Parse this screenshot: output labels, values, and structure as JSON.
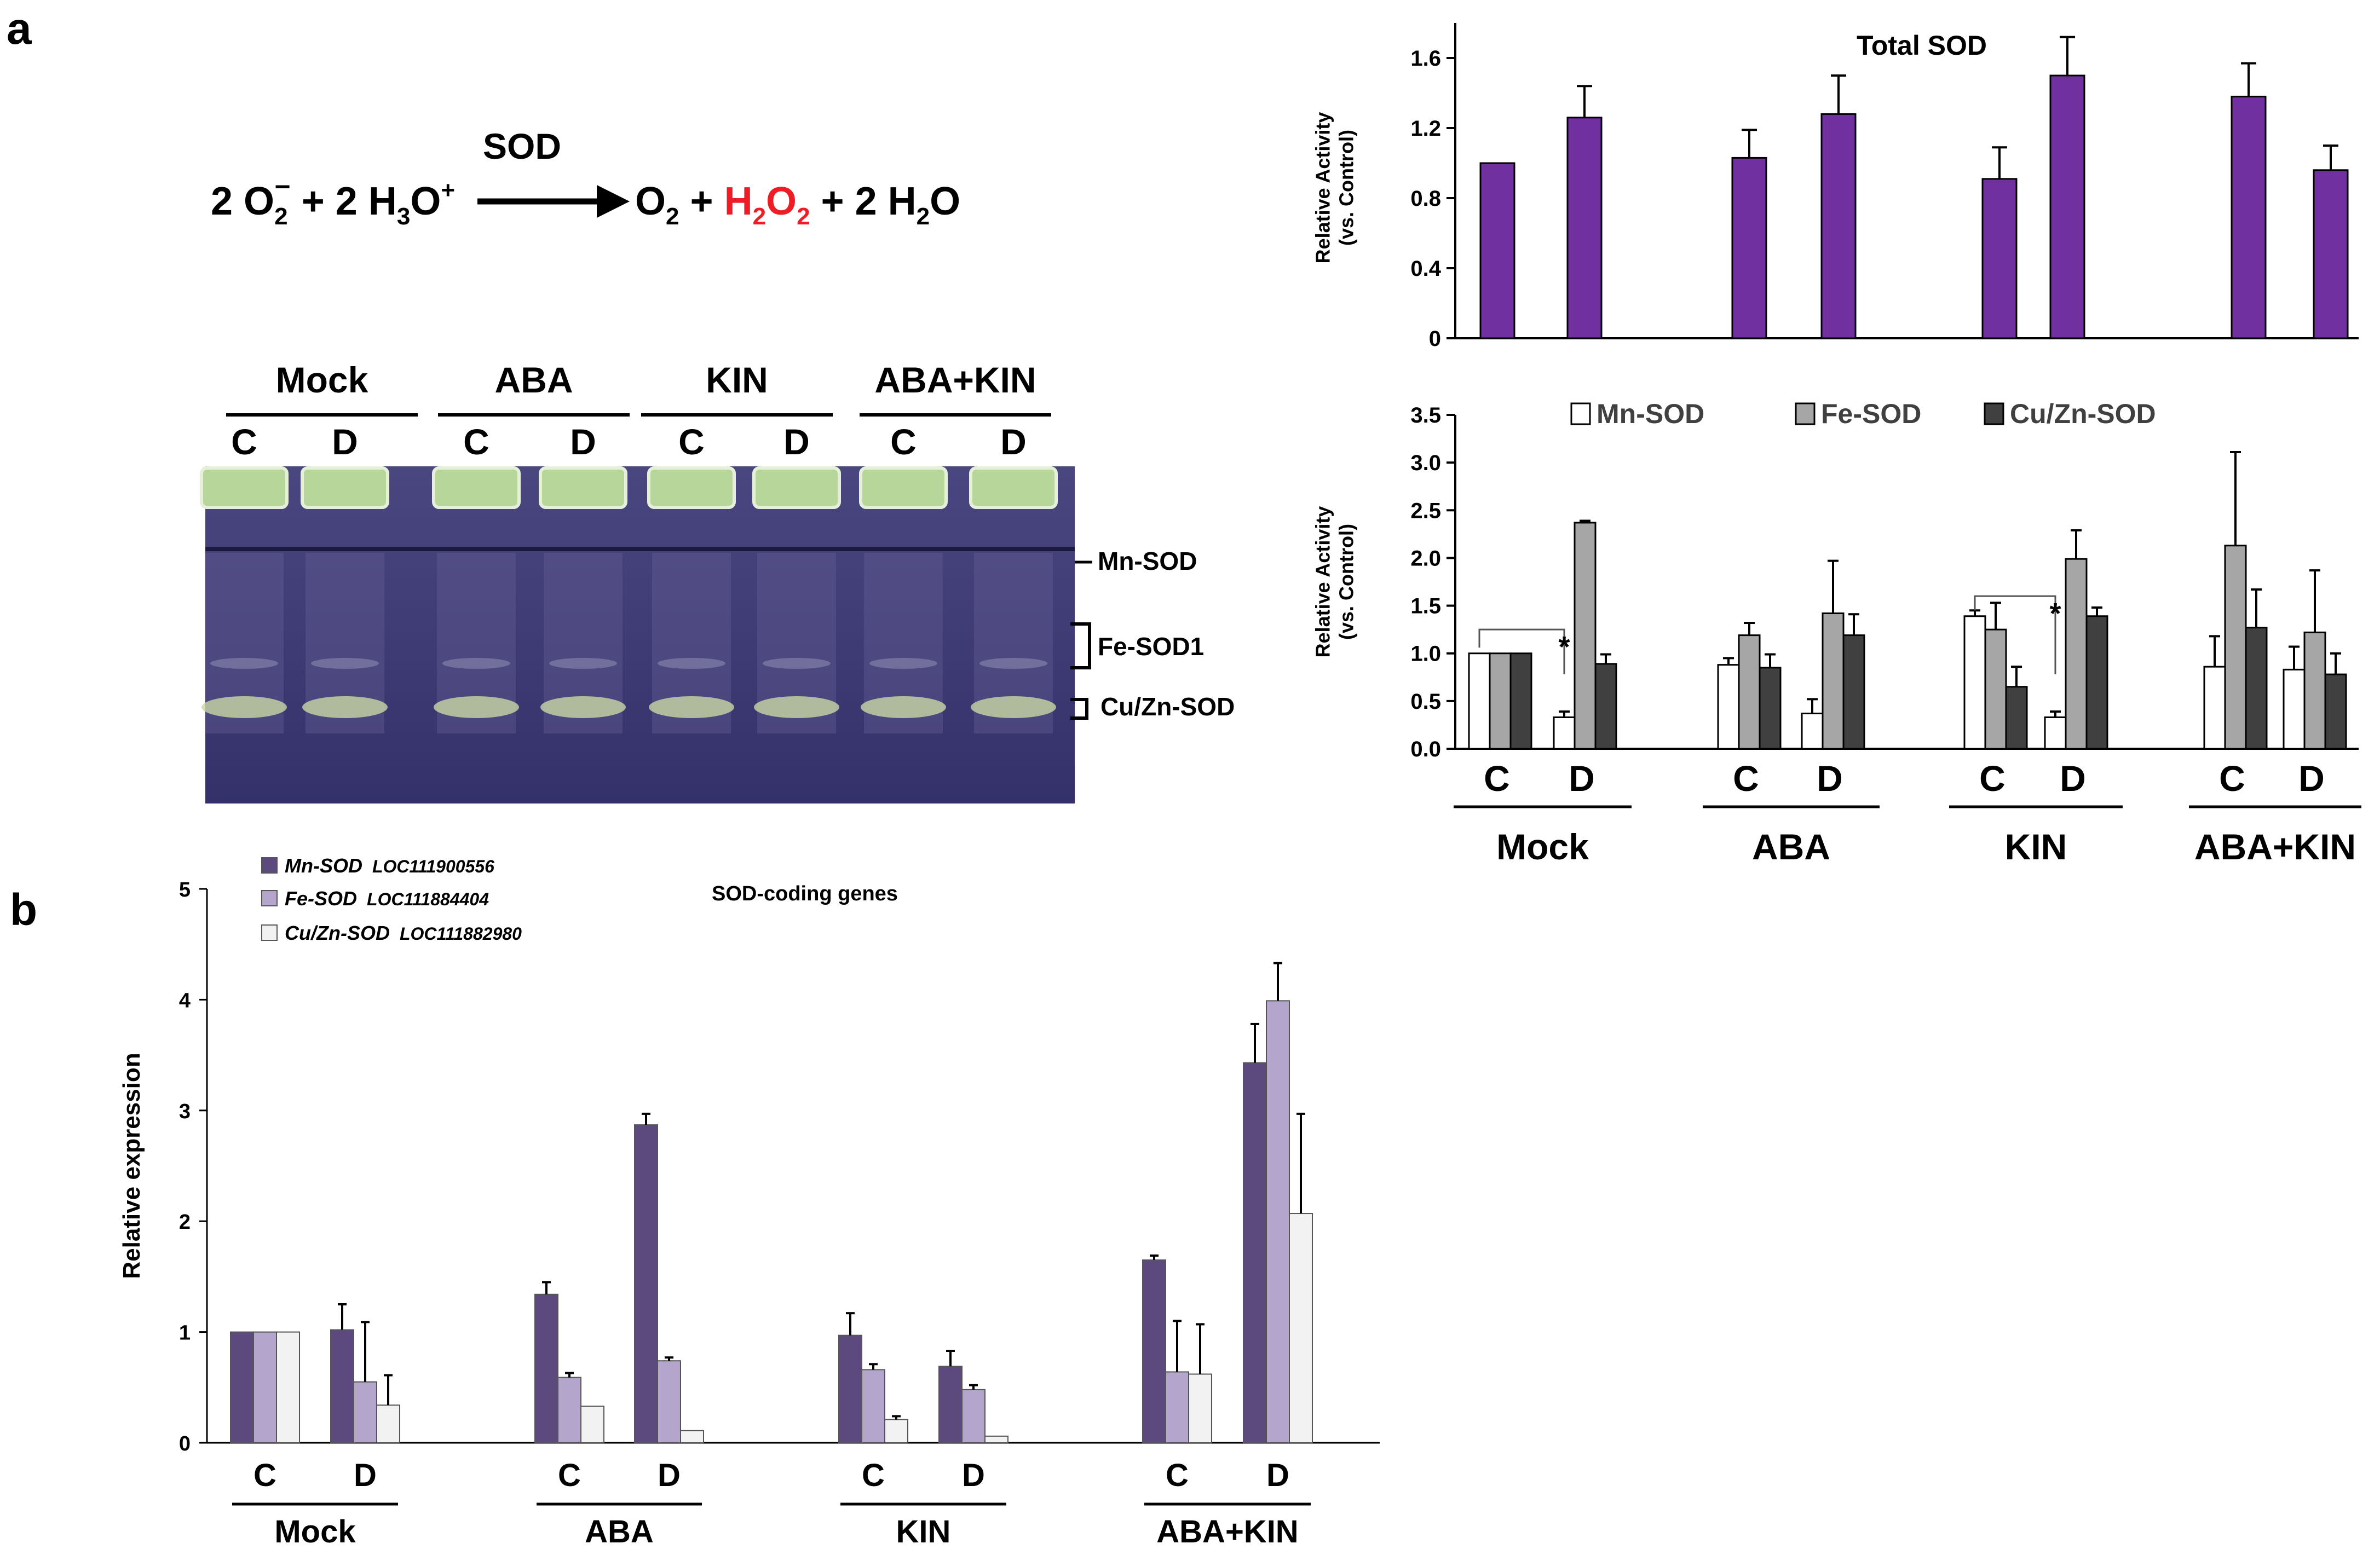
{
  "panel_labels": {
    "a": "a",
    "b": "b"
  },
  "reaction": {
    "enzyme": "SOD",
    "reactant1": "2 O",
    "reactant1_sub": "2",
    "reactant1_sup": "−",
    "plus1": "+ 2 H",
    "reactant2_sub": "3",
    "reactant2_tail": "O",
    "reactant2_sup": "+",
    "product1": "O",
    "product1_sub": "2",
    "plus2": " + ",
    "product2": "H",
    "product2_sub1": "2",
    "product2_mid": "O",
    "product2_sub2": "2",
    "plus3": " + 2 H",
    "product3_sub": "2",
    "product3_tail": "O",
    "highlight_color": "#ee1c25"
  },
  "gel": {
    "groups": [
      "Mock",
      "ABA",
      "KIN",
      "ABA+KIN"
    ],
    "lanes": [
      "C",
      "D",
      "C",
      "D",
      "C",
      "D",
      "C",
      "D"
    ],
    "band_labels": {
      "mn": "Mn-SOD",
      "fe": "Fe-SOD1",
      "cuzn": "Cu/Zn-SOD"
    },
    "colors": {
      "background": "#3c3a74",
      "well": "#b7d79a",
      "band": "#c9d7a4"
    }
  },
  "chart_data": [
    {
      "id": "total_sod",
      "type": "bar",
      "title": "Total SOD",
      "ylabel": "Relative Activity\n(vs. Control)",
      "ylim": [
        0,
        1.8
      ],
      "yticks": [
        "0",
        "0.4",
        "0.8",
        "1.2",
        "1.6"
      ],
      "categories": [
        "Mock C",
        "Mock D",
        "ABA C",
        "ABA D",
        "KIN C",
        "KIN D",
        "ABA+KIN C",
        "ABA+KIN D"
      ],
      "series": [
        {
          "name": "Total SOD",
          "color": "#7030a0",
          "values": [
            1.0,
            1.26,
            1.03,
            1.28,
            0.91,
            1.5,
            1.38,
            0.96
          ],
          "errors": [
            0,
            0.18,
            0.16,
            0.22,
            0.18,
            0.22,
            0.19,
            0.14
          ]
        }
      ]
    },
    {
      "id": "isoforms",
      "type": "bar",
      "ylabel": "Relative Activity\n(vs. Control)",
      "ylim": [
        0,
        3.5
      ],
      "yticks": [
        "0.0",
        "0.5",
        "1.0",
        "1.5",
        "2.0",
        "2.5",
        "3.0",
        "3.5"
      ],
      "groups": [
        "Mock",
        "ABA",
        "KIN",
        "ABA+KIN"
      ],
      "subgroups": [
        "C",
        "D"
      ],
      "significance": "*",
      "series": [
        {
          "name": "Mn-SOD",
          "color": "#ffffff",
          "values": [
            1.0,
            0.33,
            0.88,
            0.37,
            1.39,
            0.33,
            0.86,
            0.83
          ],
          "errors": [
            0,
            0.06,
            0.07,
            0.15,
            0.06,
            0.06,
            0.32,
            0.24
          ]
        },
        {
          "name": "Fe-SOD",
          "color": "#a6a6a6",
          "values": [
            1.0,
            2.37,
            1.19,
            1.42,
            1.25,
            1.99,
            2.13,
            1.22
          ],
          "errors": [
            0,
            0.02,
            0.13,
            0.55,
            0.28,
            0.3,
            0.98,
            0.65
          ]
        },
        {
          "name": "Cu/Zn-SOD",
          "color": "#404040",
          "values": [
            1.0,
            0.89,
            0.85,
            1.19,
            0.65,
            1.39,
            1.27,
            0.78
          ],
          "errors": [
            0,
            0.1,
            0.14,
            0.22,
            0.21,
            0.09,
            0.4,
            0.22
          ]
        }
      ]
    },
    {
      "id": "gene_expression",
      "type": "bar",
      "title": "SOD-coding genes",
      "ylabel": "Relative expression",
      "ylim": [
        0,
        5
      ],
      "yticks": [
        "0",
        "1",
        "2",
        "3",
        "4",
        "5"
      ],
      "groups": [
        "Mock",
        "ABA",
        "KIN",
        "ABA+KIN"
      ],
      "subgroups": [
        "C",
        "D"
      ],
      "series": [
        {
          "name": "Mn-SOD",
          "gene": "LOC111900556",
          "color": "#5c4a7e",
          "values": [
            1.0,
            1.02,
            1.34,
            2.87,
            0.97,
            0.69,
            1.65,
            3.43
          ],
          "errors": [
            0,
            0.23,
            0.11,
            0.1,
            0.2,
            0.14,
            0.04,
            0.35
          ]
        },
        {
          "name": "Fe-SOD",
          "gene": "LOC111884404",
          "color": "#b4a5cc",
          "values": [
            1.0,
            0.55,
            0.59,
            0.74,
            0.66,
            0.48,
            0.64,
            3.99
          ],
          "errors": [
            0,
            0.54,
            0.04,
            0.03,
            0.05,
            0.04,
            0.46,
            0.34
          ]
        },
        {
          "name": "Cu/Zn-SOD",
          "gene": "LOC111882980",
          "color": "#f2f2f2",
          "values": [
            1.0,
            0.34,
            0.33,
            0.11,
            0.21,
            0.06,
            0.62,
            2.07
          ],
          "errors": [
            0,
            0.27,
            0,
            0,
            0.03,
            0,
            0.45,
            0.9
          ]
        }
      ]
    }
  ]
}
